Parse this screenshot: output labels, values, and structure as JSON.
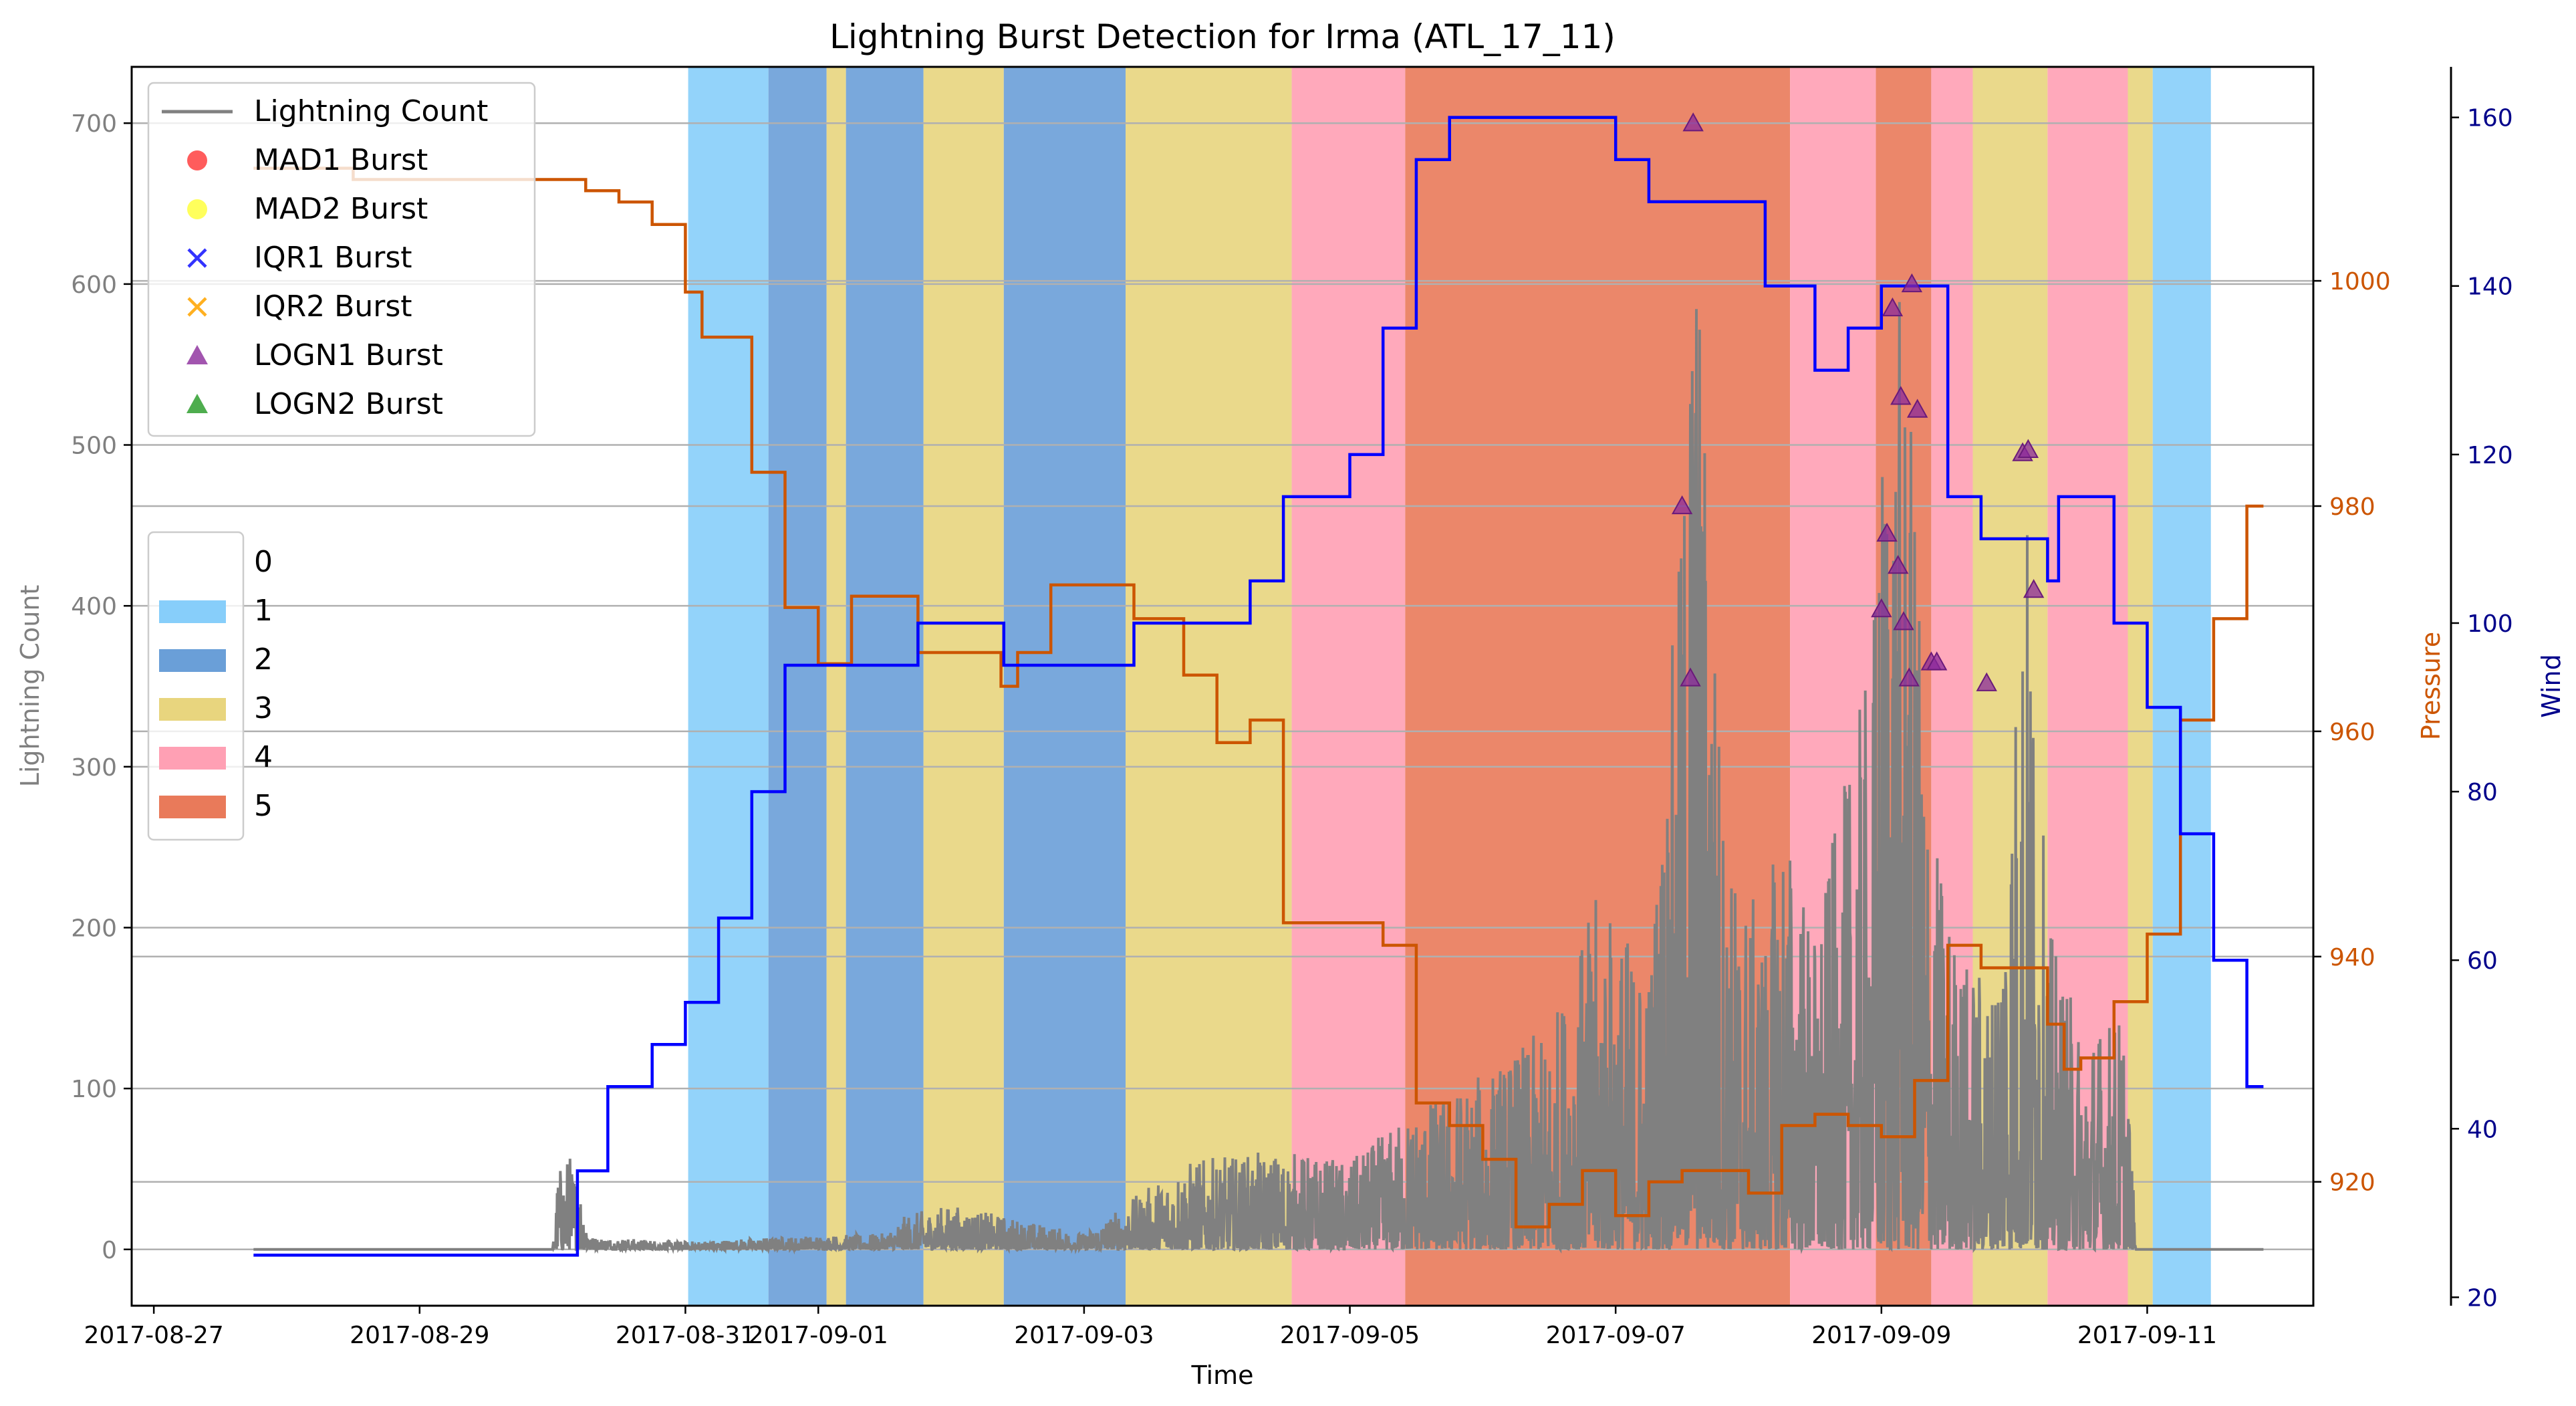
{
  "chart_data": {
    "type": "line",
    "title": "Lightning Burst Detection for Irma (ATL_17_11)",
    "xlabel": "Time",
    "ylabel_left": "Lightning Count",
    "ylabel_right1": "Pressure",
    "ylabel_right2": "Wind",
    "x_range": [
      "2017-08-26T20:00",
      "2017-09-12T06:00"
    ],
    "x_ticks": [
      "2017-08-27",
      "2017-08-29",
      "2017-08-31",
      "2017-09-01",
      "2017-09-03",
      "2017-09-05",
      "2017-09-07",
      "2017-09-09",
      "2017-09-11"
    ],
    "ylim_left": [
      -35,
      735
    ],
    "yticks_left": [
      0,
      100,
      200,
      300,
      400,
      500,
      600,
      700
    ],
    "ylim_pressure": [
      909,
      1019
    ],
    "yticks_pressure": [
      920,
      940,
      960,
      980,
      1000
    ],
    "ylim_wind": [
      19,
      166
    ],
    "yticks_wind": [
      20,
      40,
      60,
      80,
      100,
      120,
      140,
      160
    ],
    "grid": "horizontal",
    "colors": {
      "lightning": "#808080",
      "pressure": "#cc5500",
      "wind": "#0000ff",
      "wind_axis": "#00008b",
      "grid": "#b0b0b0",
      "cat1": "#87cefa",
      "cat2": "#6a9fd8",
      "cat3": "#e8d57e",
      "cat4": "#ffa0b4",
      "cat5": "#e97a5a"
    },
    "legend_top": {
      "placement": "top-left",
      "entries": [
        {
          "label": "Lightning Count",
          "marker": "line",
          "color": "#808080"
        },
        {
          "label": "MAD1 Burst",
          "marker": "circle",
          "color": "#ff3333"
        },
        {
          "label": "MAD2 Burst",
          "marker": "circle",
          "color": "#ffff33"
        },
        {
          "label": "IQR1 Burst",
          "marker": "x",
          "color": "#3333ff"
        },
        {
          "label": "IQR2 Burst",
          "marker": "x",
          "color": "#ffb020"
        },
        {
          "label": "LOGN1 Burst",
          "marker": "triangle",
          "color": "#8b2a9b"
        },
        {
          "label": "LOGN2 Burst",
          "marker": "triangle",
          "color": "#229922"
        }
      ]
    },
    "legend_category": {
      "placement": "center-left",
      "entries": [
        {
          "label": "0",
          "color": "none"
        },
        {
          "label": "1",
          "color": "#87cefa"
        },
        {
          "label": "2",
          "color": "#6a9fd8"
        },
        {
          "label": "3",
          "color": "#e8d57e"
        },
        {
          "label": "4",
          "color": "#ffa0b4"
        },
        {
          "label": "5",
          "color": "#e97a5a"
        }
      ]
    },
    "category_spans": [
      {
        "start": "2017-08-31T00:30",
        "end": "2017-08-31T15:00",
        "cat": 1
      },
      {
        "start": "2017-08-31T15:00",
        "end": "2017-09-01T01:30",
        "cat": 2
      },
      {
        "start": "2017-09-01T01:30",
        "end": "2017-09-01T05:00",
        "cat": 3
      },
      {
        "start": "2017-09-01T05:00",
        "end": "2017-09-01T19:00",
        "cat": 2
      },
      {
        "start": "2017-09-01T19:00",
        "end": "2017-09-02T09:30",
        "cat": 3
      },
      {
        "start": "2017-09-02T09:30",
        "end": "2017-09-03T07:30",
        "cat": 2
      },
      {
        "start": "2017-09-03T07:30",
        "end": "2017-09-04T13:30",
        "cat": 3
      },
      {
        "start": "2017-09-04T13:30",
        "end": "2017-09-05T10:00",
        "cat": 4
      },
      {
        "start": "2017-09-05T10:00",
        "end": "2017-09-08T07:30",
        "cat": 5
      },
      {
        "start": "2017-09-08T07:30",
        "end": "2017-09-08T23:00",
        "cat": 4
      },
      {
        "start": "2017-09-08T23:00",
        "end": "2017-09-09T09:00",
        "cat": 5
      },
      {
        "start": "2017-09-09T09:00",
        "end": "2017-09-09T16:30",
        "cat": 4
      },
      {
        "start": "2017-09-09T16:30",
        "end": "2017-09-10T06:00",
        "cat": 3
      },
      {
        "start": "2017-09-10T06:00",
        "end": "2017-09-10T20:30",
        "cat": 4
      },
      {
        "start": "2017-09-10T20:30",
        "end": "2017-09-11T01:00",
        "cat": 3
      },
      {
        "start": "2017-09-11T01:00",
        "end": "2017-09-11T11:30",
        "cat": 1
      }
    ],
    "series": [
      {
        "name": "Wind",
        "axis": "wind",
        "step": true,
        "points": [
          [
            "2017-08-27T18:00",
            25
          ],
          [
            "2017-08-30T04:00",
            25
          ],
          [
            "2017-08-30T04:30",
            35
          ],
          [
            "2017-08-30T10:00",
            45
          ],
          [
            "2017-08-30T18:00",
            50
          ],
          [
            "2017-08-31T00:00",
            55
          ],
          [
            "2017-08-31T06:00",
            65
          ],
          [
            "2017-08-31T12:00",
            80
          ],
          [
            "2017-08-31T18:00",
            95
          ],
          [
            "2017-09-01T06:00",
            95
          ],
          [
            "2017-09-01T18:00",
            100
          ],
          [
            "2017-09-02T06:00",
            100
          ],
          [
            "2017-09-02T09:30",
            95
          ],
          [
            "2017-09-03T09:00",
            100
          ],
          [
            "2017-09-04T06:00",
            105
          ],
          [
            "2017-09-04T12:00",
            115
          ],
          [
            "2017-09-05T00:00",
            120
          ],
          [
            "2017-09-05T06:00",
            135
          ],
          [
            "2017-09-05T12:00",
            155
          ],
          [
            "2017-09-05T18:00",
            160
          ],
          [
            "2017-09-07T00:00",
            155
          ],
          [
            "2017-09-07T06:00",
            150
          ],
          [
            "2017-09-08T03:00",
            140
          ],
          [
            "2017-09-08T12:00",
            130
          ],
          [
            "2017-09-08T18:00",
            135
          ],
          [
            "2017-09-09T00:00",
            140
          ],
          [
            "2017-09-09T12:00",
            115
          ],
          [
            "2017-09-09T18:00",
            110
          ],
          [
            "2017-09-10T06:00",
            105
          ],
          [
            "2017-09-10T08:00",
            115
          ],
          [
            "2017-09-10T18:00",
            100
          ],
          [
            "2017-09-11T00:00",
            90
          ],
          [
            "2017-09-11T06:00",
            75
          ],
          [
            "2017-09-11T12:00",
            60
          ],
          [
            "2017-09-11T18:00",
            45
          ],
          [
            "2017-09-11T21:00",
            45
          ]
        ]
      },
      {
        "name": "Pressure",
        "axis": "pressure",
        "step": true,
        "points": [
          [
            "2017-08-27T18:00",
            1010
          ],
          [
            "2017-08-28T12:00",
            1009
          ],
          [
            "2017-08-30T06:00",
            1008
          ],
          [
            "2017-08-30T12:00",
            1007
          ],
          [
            "2017-08-30T18:00",
            1005
          ],
          [
            "2017-08-31T00:00",
            999
          ],
          [
            "2017-08-31T03:00",
            995
          ],
          [
            "2017-08-31T12:00",
            983
          ],
          [
            "2017-08-31T18:00",
            971
          ],
          [
            "2017-09-01T00:00",
            966
          ],
          [
            "2017-09-01T06:00",
            972
          ],
          [
            "2017-09-01T18:00",
            967
          ],
          [
            "2017-09-02T09:00",
            964
          ],
          [
            "2017-09-02T12:00",
            967
          ],
          [
            "2017-09-02T18:00",
            973
          ],
          [
            "2017-09-03T09:00",
            970
          ],
          [
            "2017-09-03T18:00",
            965
          ],
          [
            "2017-09-04T00:00",
            959
          ],
          [
            "2017-09-04T06:00",
            961
          ],
          [
            "2017-09-04T12:00",
            943
          ],
          [
            "2017-09-05T06:00",
            941
          ],
          [
            "2017-09-05T12:00",
            927
          ],
          [
            "2017-09-05T18:00",
            925
          ],
          [
            "2017-09-06T00:00",
            922
          ],
          [
            "2017-09-06T06:00",
            916
          ],
          [
            "2017-09-06T12:00",
            918
          ],
          [
            "2017-09-06T18:00",
            921
          ],
          [
            "2017-09-07T00:00",
            917
          ],
          [
            "2017-09-07T06:00",
            920
          ],
          [
            "2017-09-07T12:00",
            921
          ],
          [
            "2017-09-08T00:00",
            919
          ],
          [
            "2017-09-08T06:00",
            925
          ],
          [
            "2017-09-08T12:00",
            926
          ],
          [
            "2017-09-08T18:00",
            925
          ],
          [
            "2017-09-09T00:00",
            924
          ],
          [
            "2017-09-09T06:00",
            929
          ],
          [
            "2017-09-09T12:00",
            941
          ],
          [
            "2017-09-09T18:00",
            939
          ],
          [
            "2017-09-10T06:00",
            934
          ],
          [
            "2017-09-10T09:00",
            930
          ],
          [
            "2017-09-10T12:00",
            931
          ],
          [
            "2017-09-10T18:00",
            936
          ],
          [
            "2017-09-11T00:00",
            942
          ],
          [
            "2017-09-11T06:00",
            961
          ],
          [
            "2017-09-11T12:00",
            970
          ],
          [
            "2017-09-11T18:00",
            980
          ],
          [
            "2017-09-11T21:00",
            980
          ]
        ]
      },
      {
        "name": "Lightning Count",
        "axis": "left",
        "baseline": 0,
        "envelope": [
          [
            "2017-08-27T18:00",
            0
          ],
          [
            "2017-08-30T00:00",
            0
          ],
          [
            "2017-08-30T01:00",
            50
          ],
          [
            "2017-08-30T03:00",
            62
          ],
          [
            "2017-08-30T05:00",
            42
          ],
          [
            "2017-08-30T07:00",
            8
          ],
          [
            "2017-08-31T00:00",
            5
          ],
          [
            "2017-08-31T18:00",
            8
          ],
          [
            "2017-09-01T12:00",
            10
          ],
          [
            "2017-09-01T16:00",
            22
          ],
          [
            "2017-09-02T00:00",
            28
          ],
          [
            "2017-09-03T00:00",
            10
          ],
          [
            "2017-09-03T18:00",
            55
          ],
          [
            "2017-09-04T12:00",
            62
          ],
          [
            "2017-09-05T00:00",
            55
          ],
          [
            "2017-09-05T12:00",
            90
          ],
          [
            "2017-09-06T00:00",
            110
          ],
          [
            "2017-09-06T12:00",
            140
          ],
          [
            "2017-09-06T21:00",
            225
          ],
          [
            "2017-09-07T06:00",
            180
          ],
          [
            "2017-09-07T12:00",
            460
          ],
          [
            "2017-09-07T14:00",
            700
          ],
          [
            "2017-09-07T20:00",
            250
          ],
          [
            "2017-09-08T03:00",
            205
          ],
          [
            "2017-09-08T06:00",
            285
          ],
          [
            "2017-09-08T12:00",
            200
          ],
          [
            "2017-09-08T22:00",
            370
          ],
          [
            "2017-09-09T01:00",
            585
          ],
          [
            "2017-09-09T04:00",
            600
          ],
          [
            "2017-09-09T09:00",
            270
          ],
          [
            "2017-09-09T14:00",
            190
          ],
          [
            "2017-09-09T20:00",
            170
          ],
          [
            "2017-09-10T00:00",
            350
          ],
          [
            "2017-09-10T02:00",
            495
          ],
          [
            "2017-09-10T06:00",
            205
          ],
          [
            "2017-09-10T12:00",
            140
          ],
          [
            "2017-09-10T20:00",
            150
          ],
          [
            "2017-09-10T22:00",
            0
          ],
          [
            "2017-09-11T21:00",
            0
          ]
        ]
      }
    ],
    "burst_markers": {
      "label": "LOGN1 Burst",
      "points": [
        [
          "2017-09-07T12:00",
          462
        ],
        [
          "2017-09-07T13:30",
          355
        ],
        [
          "2017-09-07T14:00",
          700
        ],
        [
          "2017-09-09T00:00",
          398
        ],
        [
          "2017-09-09T01:00",
          445
        ],
        [
          "2017-09-09T02:00",
          585
        ],
        [
          "2017-09-09T03:00",
          425
        ],
        [
          "2017-09-09T03:30",
          530
        ],
        [
          "2017-09-09T04:00",
          390
        ],
        [
          "2017-09-09T05:00",
          355
        ],
        [
          "2017-09-09T05:30",
          600
        ],
        [
          "2017-09-09T06:30",
          522
        ],
        [
          "2017-09-09T09:00",
          365
        ],
        [
          "2017-09-09T10:00",
          365
        ],
        [
          "2017-09-09T19:00",
          352
        ],
        [
          "2017-09-10T01:30",
          495
        ],
        [
          "2017-09-10T02:30",
          497
        ],
        [
          "2017-09-10T03:30",
          410
        ]
      ]
    }
  }
}
